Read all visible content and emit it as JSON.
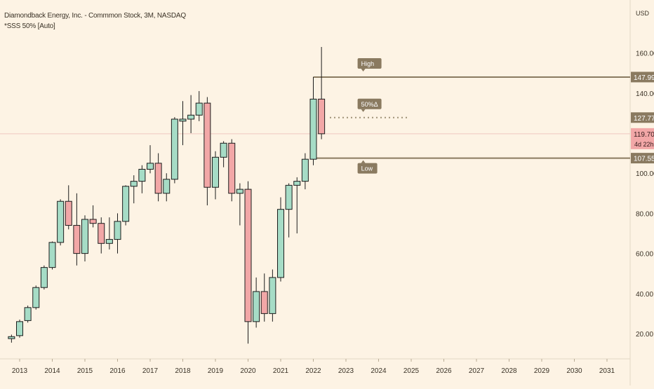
{
  "header": {
    "title": "Diamondback Energy, Inc. - Commmon Stock, 3M, NASDAQ",
    "indicator": "*SSS 50% [Auto]"
  },
  "colors": {
    "background": "#fdf3e4",
    "up": "#a6dcc6",
    "down": "#f2a7a7",
    "outline": "#1c1c1c",
    "level": "#8a7a60",
    "mid_dots": "#a09378",
    "price_line": "#f0c8c0",
    "price_tag": "#f2a7a7",
    "tick_text": "#3a3226"
  },
  "chart_data": {
    "type": "candlestick",
    "title": "Diamondback Energy, Inc. - Commmon Stock, 3M, NASDAQ",
    "interval": "3M",
    "currency": "USD",
    "ylim": [
      10,
      170
    ],
    "y_ticks": [
      20,
      40,
      60,
      80,
      100,
      120,
      140,
      160
    ],
    "y_tick_labels": [
      "20.00",
      "40.00",
      "60.00",
      "80.00",
      "100.00",
      "120.00",
      "140.00",
      "160.00"
    ],
    "x_labels": [
      {
        "t": 2013.0,
        "label": "2013"
      },
      {
        "t": 2014.0,
        "label": "2014"
      },
      {
        "t": 2015.0,
        "label": "2015"
      },
      {
        "t": 2016.0,
        "label": "2016"
      },
      {
        "t": 2017.0,
        "label": "2017"
      },
      {
        "t": 2018.0,
        "label": "2018"
      },
      {
        "t": 2019.0,
        "label": "2019"
      },
      {
        "t": 2020.0,
        "label": "2020"
      },
      {
        "t": 2021.0,
        "label": "2021"
      },
      {
        "t": 2022.0,
        "label": "2022"
      },
      {
        "t": 2023.0,
        "label": "2023"
      },
      {
        "t": 2024.0,
        "label": "2024"
      },
      {
        "t": 2025.0,
        "label": "2025"
      },
      {
        "t": 2026.0,
        "label": "2026"
      },
      {
        "t": 2027.0,
        "label": "2027"
      },
      {
        "t": 2028.0,
        "label": "2028"
      },
      {
        "t": 2029.0,
        "label": "2029"
      },
      {
        "t": 2030.0,
        "label": "2030"
      },
      {
        "t": 2031.0,
        "label": "2031"
      }
    ],
    "candles": [
      {
        "t": 2012.75,
        "o": 17.5,
        "h": 19.5,
        "l": 15.5,
        "c": 18.5
      },
      {
        "t": 2013.0,
        "o": 19.0,
        "h": 27.0,
        "l": 18.0,
        "c": 26.0
      },
      {
        "t": 2013.25,
        "o": 26.5,
        "h": 34.0,
        "l": 25.5,
        "c": 33.0
      },
      {
        "t": 2013.5,
        "o": 33.0,
        "h": 44.0,
        "l": 32.0,
        "c": 43.0
      },
      {
        "t": 2013.75,
        "o": 43.0,
        "h": 54.0,
        "l": 42.0,
        "c": 53.0
      },
      {
        "t": 2014.0,
        "o": 53.0,
        "h": 66.0,
        "l": 52.0,
        "c": 65.5
      },
      {
        "t": 2014.25,
        "o": 65.5,
        "h": 87.0,
        "l": 64.0,
        "c": 86.0
      },
      {
        "t": 2014.5,
        "o": 86.0,
        "h": 94.0,
        "l": 72.0,
        "c": 74.0
      },
      {
        "t": 2014.75,
        "o": 74.0,
        "h": 90.0,
        "l": 54.0,
        "c": 60.0
      },
      {
        "t": 2015.0,
        "o": 60.0,
        "h": 79.0,
        "l": 56.0,
        "c": 77.0
      },
      {
        "t": 2015.25,
        "o": 77.0,
        "h": 84.0,
        "l": 73.0,
        "c": 75.0
      },
      {
        "t": 2015.5,
        "o": 75.0,
        "h": 78.0,
        "l": 60.0,
        "c": 65.0
      },
      {
        "t": 2015.75,
        "o": 65.0,
        "h": 78.0,
        "l": 62.0,
        "c": 67.0
      },
      {
        "t": 2016.0,
        "o": 67.0,
        "h": 80.0,
        "l": 60.0,
        "c": 76.0
      },
      {
        "t": 2016.25,
        "o": 76.0,
        "h": 94.0,
        "l": 74.0,
        "c": 93.5
      },
      {
        "t": 2016.5,
        "o": 93.5,
        "h": 99.0,
        "l": 85.0,
        "c": 96.0
      },
      {
        "t": 2016.75,
        "o": 96.0,
        "h": 104.0,
        "l": 90.0,
        "c": 102.0
      },
      {
        "t": 2017.0,
        "o": 102.0,
        "h": 114.0,
        "l": 100.0,
        "c": 105.0
      },
      {
        "t": 2017.25,
        "o": 105.0,
        "h": 110.0,
        "l": 86.0,
        "c": 90.0
      },
      {
        "t": 2017.5,
        "o": 90.0,
        "h": 100.0,
        "l": 86.0,
        "c": 97.0
      },
      {
        "t": 2017.75,
        "o": 97.0,
        "h": 128.0,
        "l": 95.0,
        "c": 127.0
      },
      {
        "t": 2018.0,
        "o": 126.0,
        "h": 136.0,
        "l": 114.0,
        "c": 127.0
      },
      {
        "t": 2018.25,
        "o": 127.0,
        "h": 139.0,
        "l": 120.0,
        "c": 129.0
      },
      {
        "t": 2018.5,
        "o": 129.0,
        "h": 141.0,
        "l": 126.0,
        "c": 135.0
      },
      {
        "t": 2018.75,
        "o": 135.0,
        "h": 138.0,
        "l": 84.0,
        "c": 93.0
      },
      {
        "t": 2019.0,
        "o": 93.0,
        "h": 111.0,
        "l": 87.0,
        "c": 108.0
      },
      {
        "t": 2019.25,
        "o": 108.0,
        "h": 116.0,
        "l": 103.0,
        "c": 115.0
      },
      {
        "t": 2019.5,
        "o": 115.0,
        "h": 117.0,
        "l": 86.0,
        "c": 90.0
      },
      {
        "t": 2019.75,
        "o": 90.0,
        "h": 95.0,
        "l": 74.0,
        "c": 92.0
      },
      {
        "t": 2020.0,
        "o": 92.0,
        "h": 96.0,
        "l": 15.0,
        "c": 26.0
      },
      {
        "t": 2020.25,
        "o": 26.0,
        "h": 48.0,
        "l": 23.0,
        "c": 41.0
      },
      {
        "t": 2020.5,
        "o": 41.0,
        "h": 50.0,
        "l": 26.0,
        "c": 30.0
      },
      {
        "t": 2020.75,
        "o": 30.0,
        "h": 52.0,
        "l": 26.0,
        "c": 48.0
      },
      {
        "t": 2021.0,
        "o": 48.0,
        "h": 88.0,
        "l": 46.0,
        "c": 82.0
      },
      {
        "t": 2021.25,
        "o": 82.0,
        "h": 95.0,
        "l": 68.0,
        "c": 94.0
      },
      {
        "t": 2021.5,
        "o": 94.0,
        "h": 98.0,
        "l": 70.0,
        "c": 96.0
      },
      {
        "t": 2021.75,
        "o": 96.0,
        "h": 110.0,
        "l": 92.0,
        "c": 107.0
      },
      {
        "t": 2022.0,
        "o": 107.0,
        "h": 148.0,
        "l": 104.0,
        "c": 137.0
      },
      {
        "t": 2022.25,
        "o": 137.0,
        "h": 163.0,
        "l": 117.0,
        "c": 119.7
      }
    ],
    "levels": {
      "high": {
        "label": "High",
        "value": 147.99,
        "value_label": "147.99"
      },
      "mid": {
        "label": "50%Δ",
        "value": 127.77,
        "value_label": "127.77"
      },
      "low": {
        "label": "Low",
        "value": 107.55,
        "value_label": "107.55"
      },
      "anchor_t": 2022.0
    },
    "last_price": {
      "value": 119.7,
      "label": "119.70",
      "countdown": "4d 22h"
    },
    "axis_unit": "USD"
  }
}
